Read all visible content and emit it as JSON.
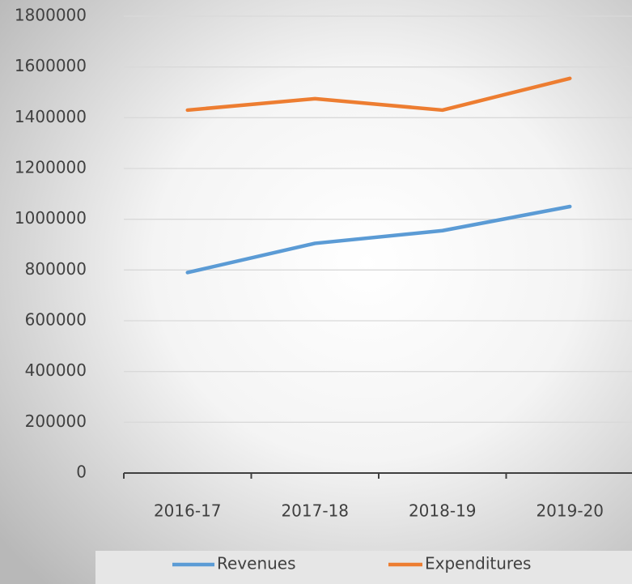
{
  "chart_data": {
    "type": "line",
    "categories": [
      "2016-17",
      "2017-18",
      "2018-19",
      "2019-20"
    ],
    "series": [
      {
        "name": "Revenues",
        "color": "#5b9bd5",
        "values": [
          790000,
          905000,
          955000,
          1050000
        ]
      },
      {
        "name": "Expenditures",
        "color": "#ed7d31",
        "values": [
          1430000,
          1475000,
          1430000,
          1555000
        ]
      }
    ],
    "ylim": [
      0,
      1800000
    ],
    "yticks": [
      0,
      200000,
      400000,
      600000,
      800000,
      1000000,
      1200000,
      1400000,
      1600000,
      1800000
    ],
    "grid": true,
    "legend": "bottom"
  }
}
